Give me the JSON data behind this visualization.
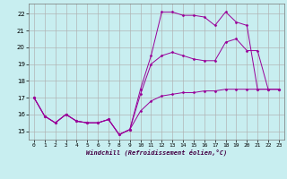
{
  "xlabel": "Windchill (Refroidissement éolien,°C)",
  "background_color": "#c8eef0",
  "grid_color": "#b0b0b0",
  "line_color": "#990099",
  "ylim": [
    14.5,
    22.6
  ],
  "xlim": [
    -0.5,
    23.5
  ],
  "yticks": [
    15,
    16,
    17,
    18,
    19,
    20,
    21,
    22
  ],
  "xticks": [
    0,
    1,
    2,
    3,
    4,
    5,
    6,
    7,
    8,
    9,
    10,
    11,
    12,
    13,
    14,
    15,
    16,
    17,
    18,
    19,
    20,
    21,
    22,
    23
  ],
  "line1_x": [
    0,
    1,
    2,
    3,
    4,
    5,
    6,
    7,
    8,
    9,
    10,
    11,
    12,
    13,
    14,
    15,
    16,
    17,
    18,
    19,
    20,
    21,
    22,
    23
  ],
  "line1_y": [
    17.0,
    15.9,
    15.5,
    16.0,
    15.6,
    15.5,
    15.5,
    15.7,
    14.8,
    15.1,
    16.2,
    16.8,
    17.1,
    17.2,
    17.3,
    17.3,
    17.4,
    17.4,
    17.5,
    17.5,
    17.5,
    17.5,
    17.5,
    17.5
  ],
  "line2_x": [
    0,
    1,
    2,
    3,
    4,
    5,
    6,
    7,
    8,
    9,
    10,
    11,
    12,
    13,
    14,
    15,
    16,
    17,
    18,
    19,
    20,
    21,
    22,
    23
  ],
  "line2_y": [
    17.0,
    15.9,
    15.5,
    16.0,
    15.6,
    15.5,
    15.5,
    15.7,
    14.8,
    15.1,
    17.2,
    19.0,
    19.5,
    19.7,
    19.5,
    19.3,
    19.2,
    19.2,
    20.3,
    20.5,
    19.8,
    19.8,
    17.5,
    17.5
  ],
  "line3_x": [
    0,
    1,
    2,
    3,
    4,
    5,
    6,
    7,
    8,
    9,
    10,
    11,
    12,
    13,
    14,
    15,
    16,
    17,
    18,
    19,
    20,
    21,
    22,
    23
  ],
  "line3_y": [
    17.0,
    15.9,
    15.5,
    16.0,
    15.6,
    15.5,
    15.5,
    15.7,
    14.8,
    15.1,
    17.5,
    19.5,
    22.1,
    22.1,
    21.9,
    21.9,
    21.8,
    21.3,
    22.1,
    21.5,
    21.3,
    17.5,
    17.5,
    17.5
  ]
}
